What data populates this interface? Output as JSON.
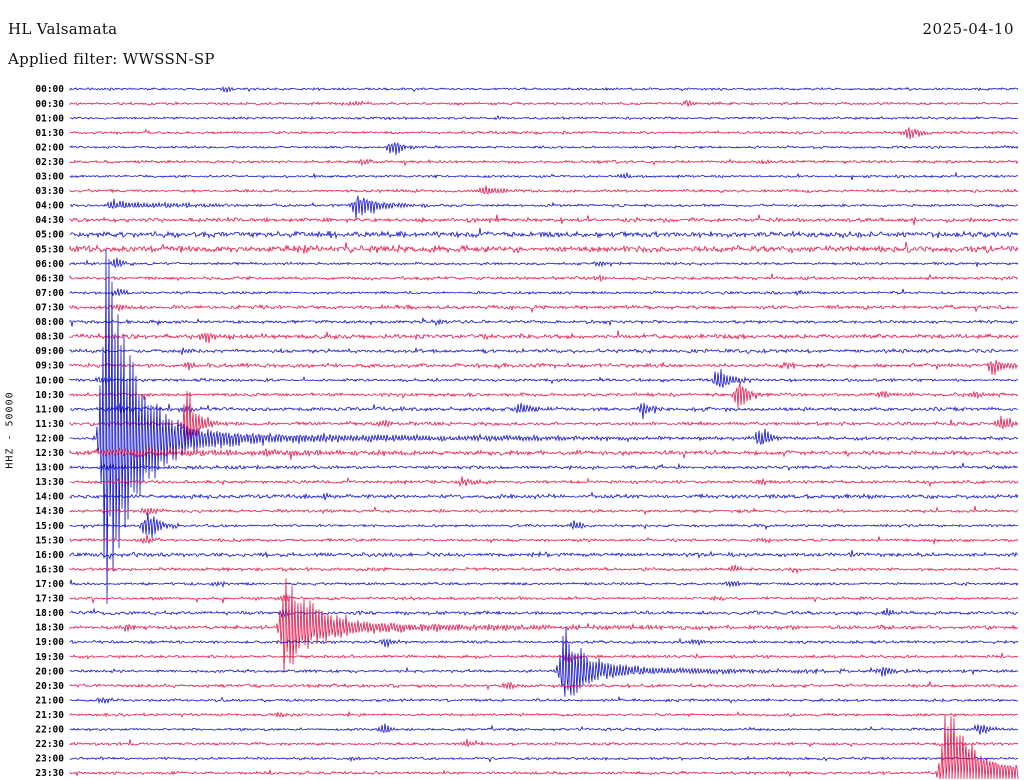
{
  "header": {
    "station": "HL Valsamata",
    "date": "2025-04-10",
    "filter_line": "Applied filter: WWSSN-SP"
  },
  "chart_data": {
    "type": "line",
    "subtype": "helicorder-seismogram",
    "station": "HL Valsamata",
    "date": "2025-04-10",
    "filter_label": "Applied filter: WWSSN-SP",
    "scale_label": "HHZ - 50000",
    "row_interval_minutes": 30,
    "time_range": [
      "00:00",
      "23:30"
    ],
    "grid": false,
    "legend": false,
    "colors": {
      "blue": "#1212cd",
      "red": "#e8174b"
    },
    "rows": [
      {
        "t": "00:00",
        "color": "blue",
        "noise": 0.9,
        "events": [
          {
            "x": 0.165,
            "amp": 4,
            "decay": 8
          }
        ]
      },
      {
        "t": "00:30",
        "color": "red",
        "noise": 1.0,
        "events": [
          {
            "x": 0.3,
            "amp": 3,
            "decay": 10
          },
          {
            "x": 0.655,
            "amp": 3.5,
            "decay": 8
          }
        ]
      },
      {
        "t": "01:00",
        "color": "blue",
        "noise": 0.9,
        "events": []
      },
      {
        "t": "01:30",
        "color": "red",
        "noise": 1.0,
        "events": [
          {
            "x": 0.887,
            "amp": 9,
            "decay": 10
          }
        ]
      },
      {
        "t": "02:00",
        "color": "blue",
        "noise": 0.9,
        "events": [
          {
            "x": 0.342,
            "amp": 10,
            "decay": 9
          }
        ]
      },
      {
        "t": "02:30",
        "color": "red",
        "noise": 1.1,
        "events": [
          {
            "x": 0.31,
            "amp": 3,
            "decay": 8
          },
          {
            "x": 0.73,
            "amp": 2.5,
            "decay": 8
          }
        ]
      },
      {
        "t": "03:00",
        "color": "blue",
        "noise": 0.9,
        "events": [
          {
            "x": 0.585,
            "amp": 3,
            "decay": 8
          }
        ]
      },
      {
        "t": "03:30",
        "color": "red",
        "noise": 1.1,
        "events": [
          {
            "x": 0.44,
            "amp": 6,
            "decay": 14
          }
        ]
      },
      {
        "t": "04:00",
        "color": "blue",
        "noise": 1.0,
        "events": [
          {
            "x": 0.045,
            "amp": 5,
            "decay": 70
          },
          {
            "x": 0.305,
            "amp": 16,
            "decay": 22,
            "rise": 5
          }
        ]
      },
      {
        "t": "04:30",
        "color": "red",
        "noise": 1.5,
        "events": [
          {
            "x": 0.21,
            "amp": 3,
            "decay": 10
          }
        ]
      },
      {
        "t": "05:00",
        "color": "blue",
        "noise": 2.2,
        "events": []
      },
      {
        "t": "05:30",
        "color": "red",
        "noise": 2.4,
        "events": [
          {
            "x": 0.245,
            "amp": 4,
            "decay": 12
          },
          {
            "x": 0.325,
            "amp": 3.5,
            "decay": 10
          }
        ]
      },
      {
        "t": "06:00",
        "color": "blue",
        "noise": 1.0,
        "events": [
          {
            "x": 0.05,
            "amp": 7,
            "decay": 7
          },
          {
            "x": 0.56,
            "amp": 3,
            "decay": 10
          }
        ]
      },
      {
        "t": "06:30",
        "color": "red",
        "noise": 1.2,
        "events": [
          {
            "x": 0.56,
            "amp": 3,
            "decay": 8
          }
        ]
      },
      {
        "t": "07:00",
        "color": "blue",
        "noise": 1.0,
        "events": [
          {
            "x": 0.052,
            "amp": 5,
            "decay": 8
          },
          {
            "x": 0.77,
            "amp": 3,
            "decay": 8
          }
        ]
      },
      {
        "t": "07:30",
        "color": "red",
        "noise": 1.5,
        "events": [
          {
            "x": 0.055,
            "amp": 4,
            "decay": 8
          }
        ]
      },
      {
        "t": "08:00",
        "color": "blue",
        "noise": 1.2,
        "events": [
          {
            "x": 0.39,
            "amp": 3,
            "decay": 8
          }
        ]
      },
      {
        "t": "08:30",
        "color": "red",
        "noise": 1.7,
        "events": [
          {
            "x": 0.145,
            "amp": 6,
            "decay": 18
          }
        ]
      },
      {
        "t": "09:00",
        "color": "blue",
        "noise": 1.4,
        "events": [
          {
            "x": 0.12,
            "amp": 4,
            "decay": 10
          }
        ]
      },
      {
        "t": "09:30",
        "color": "red",
        "noise": 1.5,
        "events": [
          {
            "x": 0.125,
            "amp": 5,
            "decay": 10
          },
          {
            "x": 0.76,
            "amp": 4,
            "decay": 8
          },
          {
            "x": 0.975,
            "amp": 9,
            "decay": 18
          }
        ]
      },
      {
        "t": "10:00",
        "color": "blue",
        "noise": 1.1,
        "events": [
          {
            "x": 0.035,
            "amp": 4,
            "decay": 8
          },
          {
            "x": 0.685,
            "amp": 16,
            "decay": 14,
            "rise": 4
          }
        ]
      },
      {
        "t": "10:30",
        "color": "red",
        "noise": 1.3,
        "events": [
          {
            "x": 0.705,
            "amp": 26,
            "decay": 8,
            "rise": 2.5
          },
          {
            "x": 0.86,
            "amp": 5,
            "decay": 8
          },
          {
            "x": 0.955,
            "amp": 5,
            "decay": 10
          }
        ]
      },
      {
        "t": "11:00",
        "color": "blue",
        "noise": 1.5,
        "events": [
          {
            "x": 0.055,
            "amp": 6,
            "decay": 8
          },
          {
            "x": 0.125,
            "amp": 5,
            "decay": 8
          },
          {
            "x": 0.475,
            "amp": 6,
            "decay": 20
          },
          {
            "x": 0.605,
            "amp": 14,
            "decay": 7,
            "rise": 2.5
          }
        ]
      },
      {
        "t": "11:30",
        "color": "red",
        "noise": 1.3,
        "events": [
          {
            "x": 0.123,
            "amp": 42,
            "decay": 12,
            "rise": 2.5
          },
          {
            "x": 0.33,
            "amp": 4,
            "decay": 10
          },
          {
            "x": 0.985,
            "amp": 10,
            "decay": 12
          }
        ]
      },
      {
        "t": "12:00",
        "color": "blue",
        "noise": 1.1,
        "events": [
          {
            "x": 0.038,
            "amp": 225,
            "decay": 28,
            "rise": 4
          },
          {
            "x": 0.045,
            "amp": 14,
            "decay": 70
          },
          {
            "x": 0.038,
            "amp": 9,
            "decay": 320
          },
          {
            "x": 0.727,
            "amp": 16,
            "decay": 11,
            "rise": 3
          }
        ]
      },
      {
        "t": "12:30",
        "color": "red",
        "noise": 1.6,
        "events": [
          {
            "x": 0.285,
            "amp": 4,
            "decay": 10
          },
          {
            "x": 0.04,
            "amp": 5,
            "decay": 250
          }
        ]
      },
      {
        "t": "13:00",
        "color": "blue",
        "noise": 1.3,
        "events": [
          {
            "x": 0.04,
            "amp": 4,
            "decay": 12
          }
        ]
      },
      {
        "t": "13:30",
        "color": "red",
        "noise": 1.2,
        "events": [
          {
            "x": 0.415,
            "amp": 6,
            "decay": 16
          },
          {
            "x": 0.73,
            "amp": 4,
            "decay": 8
          }
        ]
      },
      {
        "t": "14:00",
        "color": "blue",
        "noise": 1.5,
        "events": [
          {
            "x": 0.27,
            "amp": 5,
            "decay": 10
          }
        ]
      },
      {
        "t": "14:30",
        "color": "red",
        "noise": 1.1,
        "events": [
          {
            "x": 0.082,
            "amp": 6,
            "decay": 10
          }
        ]
      },
      {
        "t": "15:00",
        "color": "blue",
        "noise": 1.0,
        "events": [
          {
            "x": 0.082,
            "amp": 22,
            "decay": 12,
            "rise": 3.5
          },
          {
            "x": 0.535,
            "amp": 5,
            "decay": 8
          }
        ]
      },
      {
        "t": "15:30",
        "color": "red",
        "noise": 1.1,
        "events": [
          {
            "x": 0.082,
            "amp": 5,
            "decay": 10
          },
          {
            "x": 0.73,
            "amp": 3,
            "decay": 8
          }
        ]
      },
      {
        "t": "16:00",
        "color": "blue",
        "noise": 1.5,
        "events": [
          {
            "x": 0.5,
            "amp": 3,
            "decay": 8
          }
        ]
      },
      {
        "t": "16:30",
        "color": "red",
        "noise": 1.2,
        "events": [
          {
            "x": 0.7,
            "amp": 4,
            "decay": 8
          }
        ]
      },
      {
        "t": "17:00",
        "color": "blue",
        "noise": 1.0,
        "events": [
          {
            "x": 0.155,
            "amp": 3,
            "decay": 8
          },
          {
            "x": 0.7,
            "amp": 5,
            "decay": 8
          }
        ]
      },
      {
        "t": "17:30",
        "color": "red",
        "noise": 1.1,
        "events": [
          {
            "x": 0.225,
            "amp": 4,
            "decay": 8
          },
          {
            "x": 0.68,
            "amp": 3,
            "decay": 8
          }
        ]
      },
      {
        "t": "18:00",
        "color": "blue",
        "noise": 1.3,
        "events": [
          {
            "x": 0.225,
            "amp": 5,
            "decay": 8
          },
          {
            "x": 0.865,
            "amp": 5,
            "decay": 8
          }
        ]
      },
      {
        "t": "18:30",
        "color": "red",
        "noise": 1.4,
        "events": [
          {
            "x": 0.228,
            "amp": 60,
            "decay": 25,
            "rise": 4
          },
          {
            "x": 0.232,
            "amp": 18,
            "decay": 50
          },
          {
            "x": 0.228,
            "amp": 7,
            "decay": 220
          },
          {
            "x": 0.06,
            "amp": 5,
            "decay": 10
          }
        ]
      },
      {
        "t": "19:00",
        "color": "blue",
        "noise": 1.1,
        "events": [
          {
            "x": 0.335,
            "amp": 6,
            "decay": 8
          },
          {
            "x": 0.66,
            "amp": 4,
            "decay": 8
          }
        ]
      },
      {
        "t": "19:30",
        "color": "red",
        "noise": 1.1,
        "events": [
          {
            "x": 0.525,
            "amp": 9,
            "decay": 8,
            "rise": 2.5
          }
        ]
      },
      {
        "t": "20:00",
        "color": "blue",
        "noise": 1.1,
        "events": [
          {
            "x": 0.522,
            "amp": 45,
            "decay": 20,
            "rise": 4
          },
          {
            "x": 0.526,
            "amp": 15,
            "decay": 45
          },
          {
            "x": 0.522,
            "amp": 6,
            "decay": 160
          },
          {
            "x": 0.86,
            "amp": 6,
            "decay": 8
          }
        ]
      },
      {
        "t": "20:30",
        "color": "red",
        "noise": 1.3,
        "events": [
          {
            "x": 0.465,
            "amp": 5,
            "decay": 8
          }
        ]
      },
      {
        "t": "21:00",
        "color": "blue",
        "noise": 1.0,
        "events": [
          {
            "x": 0.035,
            "amp": 5,
            "decay": 8
          }
        ]
      },
      {
        "t": "21:30",
        "color": "red",
        "noise": 1.0,
        "events": [
          {
            "x": 0.22,
            "amp": 3,
            "decay": 8
          }
        ]
      },
      {
        "t": "22:00",
        "color": "blue",
        "noise": 1.0,
        "events": [
          {
            "x": 0.33,
            "amp": 7,
            "decay": 9
          },
          {
            "x": 0.962,
            "amp": 8,
            "decay": 9
          }
        ]
      },
      {
        "t": "22:30",
        "color": "red",
        "noise": 1.1,
        "events": [
          {
            "x": 0.42,
            "amp": 6,
            "decay": 8
          }
        ]
      },
      {
        "t": "23:00",
        "color": "blue",
        "noise": 1.0,
        "events": [
          {
            "x": 0.3,
            "amp": 3,
            "decay": 8
          }
        ]
      },
      {
        "t": "23:30",
        "color": "red",
        "noise": 1.1,
        "events": [
          {
            "x": 0.925,
            "amp": 78,
            "decay": 26,
            "rise": 4
          },
          {
            "x": 0.928,
            "amp": 20,
            "decay": 45
          },
          {
            "x": 0.925,
            "amp": 8,
            "decay": 150
          }
        ]
      }
    ]
  }
}
